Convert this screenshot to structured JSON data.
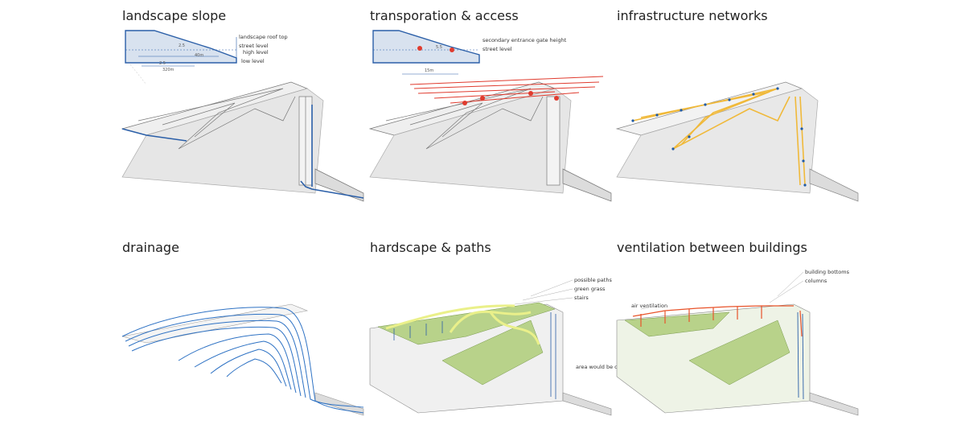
{
  "panels": [
    {
      "title": "landscape slope",
      "labels": [
        "landscape roof top",
        "street level",
        "high level",
        "low level"
      ],
      "dims": [
        "2.5",
        "2.5",
        "40m",
        "320m"
      ]
    },
    {
      "title": "transporation & access",
      "labels": [
        "secondary entrance gate height",
        "street level"
      ],
      "dims": [
        "5.5",
        "15m"
      ]
    },
    {
      "title": "infrastructure networks",
      "labels": []
    },
    {
      "title": "drainage",
      "labels": []
    },
    {
      "title": "hardscape & paths",
      "labels": [
        "possible paths",
        "green grass",
        "stairs",
        "area would be covered by water"
      ]
    },
    {
      "title": "ventilation between buildings",
      "labels": [
        "building bottoms",
        "columns",
        "air ventilation"
      ]
    }
  ],
  "colors": {
    "slope_blue": "#2b5fa8",
    "access_red": "#e03b2e",
    "network_yellow": "#f0b93a",
    "network_blue": "#1f5aa6",
    "drainage_blue": "#2e72c4",
    "grass_green": "#b8d28a",
    "vent_orange": "#e8532a",
    "structure_grey": "#8a8a8a"
  }
}
